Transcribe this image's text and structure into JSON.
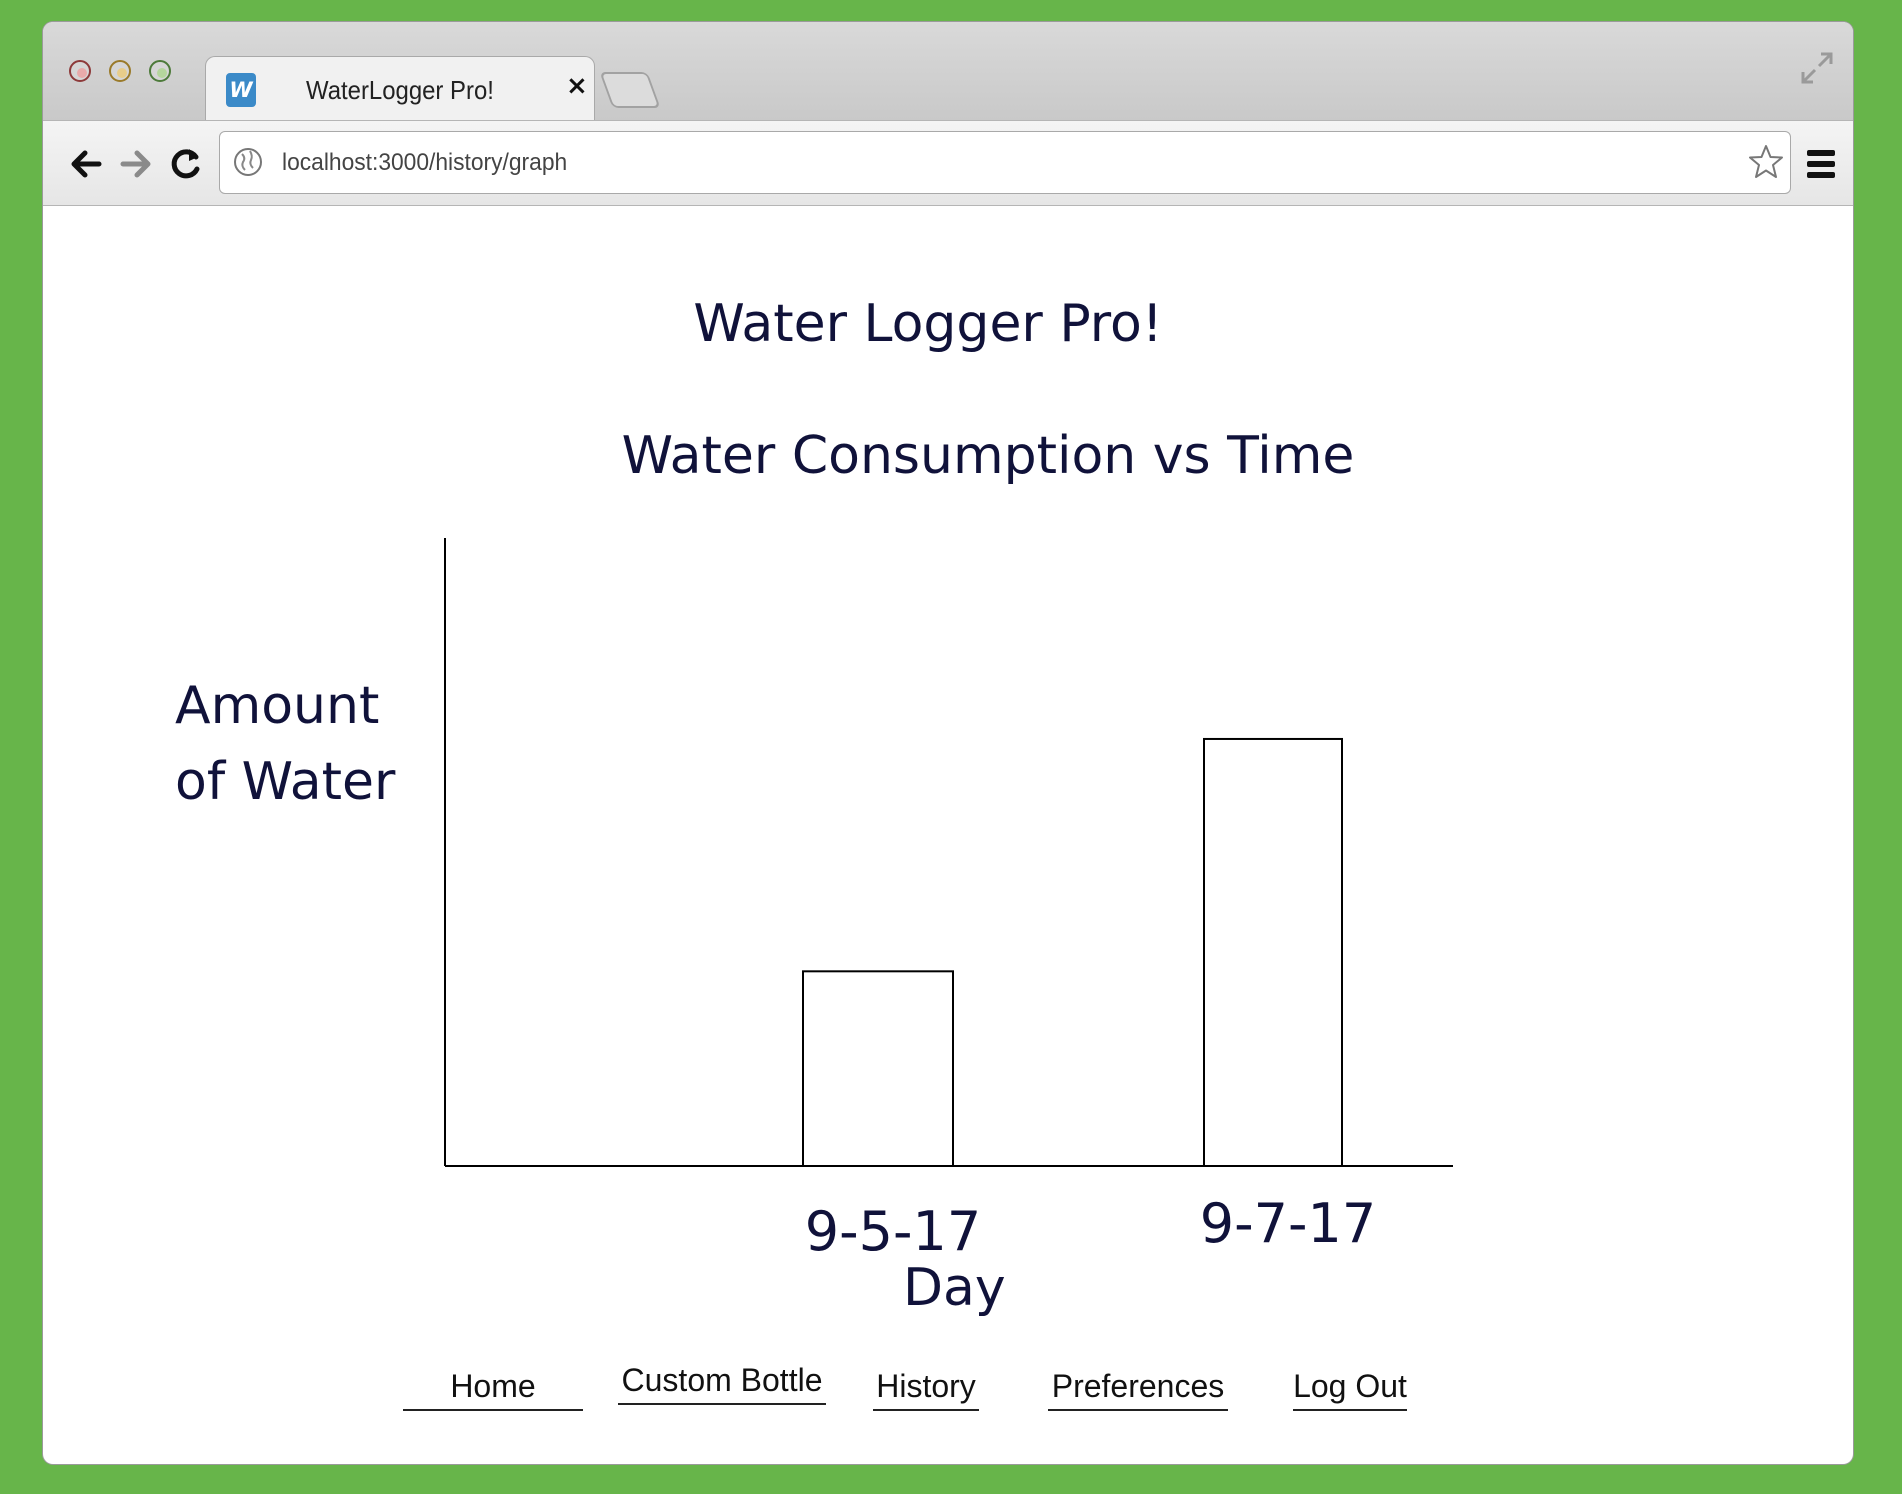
{
  "browser": {
    "tab_title": "WaterLogger Pro!",
    "tab_favicon_letter": "W",
    "tab_close_glyph": "×",
    "url": "localhost:3000/history/graph"
  },
  "page": {
    "app_title": "Water Logger Pro!"
  },
  "chart_data": {
    "type": "bar",
    "title": "Water Consumption vs Time",
    "ylabel_lines": [
      "Amount",
      "of Water"
    ],
    "xlabel": "Day",
    "categories": [
      "9-5-17",
      "9-7-17"
    ],
    "values": [
      0.31,
      0.68
    ],
    "ylim": [
      0,
      1
    ],
    "grid": false,
    "legend": "none"
  },
  "nav": {
    "items": [
      {
        "label": "Home"
      },
      {
        "label": "Custom Bottle"
      },
      {
        "label": "History"
      },
      {
        "label": "Preferences"
      },
      {
        "label": "Log Out"
      }
    ]
  }
}
